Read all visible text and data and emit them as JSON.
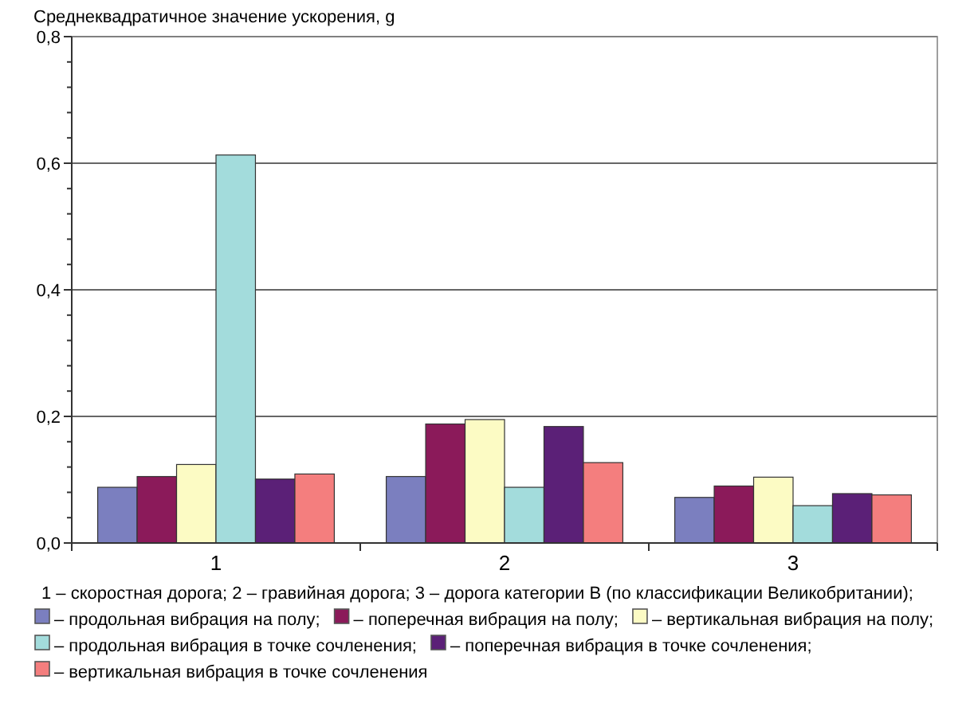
{
  "chart_data": {
    "type": "bar",
    "ylabel": "Среднеквадратичное значение ускорения, g",
    "categories": [
      "1",
      "2",
      "3"
    ],
    "series": [
      {
        "name": "– продольная вибрация на полу;",
        "color": "#7b7fbf",
        "values": [
          0.088,
          0.105,
          0.072
        ]
      },
      {
        "name": "– поперечная вибрация на полу;",
        "color": "#8b1a5a",
        "values": [
          0.105,
          0.188,
          0.09
        ]
      },
      {
        "name": "– вертикальная вибрация на полу;",
        "color": "#fcfbc4",
        "values": [
          0.124,
          0.195,
          0.104
        ]
      },
      {
        "name": "– продольная вибрация в точке сочленения;",
        "color": "#a3dcdc",
        "values": [
          0.613,
          0.088,
          0.059
        ]
      },
      {
        "name": "– поперечная вибрация в точке сочленения;",
        "color": "#5b2077",
        "values": [
          0.101,
          0.184,
          0.078
        ]
      },
      {
        "name": "– вертикальная вибрация в точке сочленения",
        "color": "#f47e7e",
        "values": [
          0.109,
          0.127,
          0.076
        ]
      }
    ],
    "ylim": [
      0,
      0.8
    ],
    "yticks": [
      {
        "value": 0,
        "label": "0,0"
      },
      {
        "value": 0.04,
        "label": null
      },
      {
        "value": 0.08,
        "label": null
      },
      {
        "value": 0.12,
        "label": null
      },
      {
        "value": 0.16,
        "label": null
      },
      {
        "value": 0.2,
        "label": "0,2"
      },
      {
        "value": 0.24,
        "label": null
      },
      {
        "value": 0.28,
        "label": null
      },
      {
        "value": 0.32,
        "label": null
      },
      {
        "value": 0.36,
        "label": null
      },
      {
        "value": 0.4,
        "label": "0,4"
      },
      {
        "value": 0.44,
        "label": null
      },
      {
        "value": 0.48,
        "label": null
      },
      {
        "value": 0.52,
        "label": null
      },
      {
        "value": 0.56,
        "label": null
      },
      {
        "value": 0.6,
        "label": "0,6"
      },
      {
        "value": 0.64,
        "label": null
      },
      {
        "value": 0.68,
        "label": null
      },
      {
        "value": 0.72,
        "label": null
      },
      {
        "value": 0.76,
        "label": null
      },
      {
        "value": 0.8,
        "label": "0,8"
      }
    ],
    "grid": "y",
    "legend": "bottom",
    "annotations": [
      "1 – скоростная дорога; 2 – гравийная дорога; 3 – дорога категории В (по классификации Великобритании);"
    ]
  }
}
